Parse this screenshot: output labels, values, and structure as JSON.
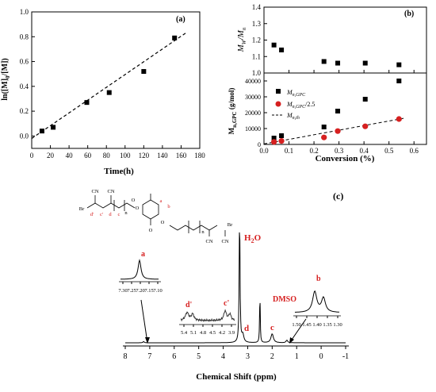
{
  "chart_data": [
    {
      "panel": "(a)",
      "type": "scatter",
      "xlabel": "Time(h)",
      "ylabel": "ln([M]0/[M])",
      "xlim": [
        0,
        180
      ],
      "ylim": [
        -0.1,
        1.0
      ],
      "xticks": [
        "0",
        "20",
        "40",
        "60",
        "80",
        "100",
        "120",
        "140",
        "160",
        "180"
      ],
      "yticks": [
        "0.0",
        "0.2",
        "0.4",
        "0.6",
        "0.8",
        "1.0"
      ],
      "points": [
        {
          "x": 11,
          "y": 0.04
        },
        {
          "x": 23,
          "y": 0.07
        },
        {
          "x": 59,
          "y": 0.27
        },
        {
          "x": 83,
          "y": 0.35
        },
        {
          "x": 120,
          "y": 0.52
        },
        {
          "x": 153,
          "y": 0.79
        }
      ],
      "fit_line": [
        {
          "x": 0,
          "y": -0.02
        },
        {
          "x": 165,
          "y": 0.83
        }
      ]
    },
    {
      "panel": "(b)",
      "type": "scatter",
      "xlabel": "Conversion (%)",
      "xlim": [
        0.0,
        0.65
      ],
      "xticks": [
        "0.0",
        "0.1",
        "0.2",
        "0.3",
        "0.4",
        "0.5",
        "0.6"
      ],
      "top": {
        "ylabel": "MW/Mn",
        "ylim": [
          1.0,
          1.4
        ],
        "yticks": [
          "1.0",
          "1.1",
          "1.2",
          "1.3",
          "1.4"
        ],
        "points": [
          {
            "x": 0.04,
            "y": 1.17
          },
          {
            "x": 0.07,
            "y": 1.14
          },
          {
            "x": 0.24,
            "y": 1.07
          },
          {
            "x": 0.295,
            "y": 1.06
          },
          {
            "x": 0.405,
            "y": 1.06
          },
          {
            "x": 0.54,
            "y": 1.05
          }
        ]
      },
      "bottom": {
        "ylabel": "Mn,GPC (g/mol)",
        "ylim": [
          0,
          45000
        ],
        "yticks": [
          "0",
          "10000",
          "20000",
          "30000",
          "40000"
        ],
        "series": [
          {
            "name": "Mn,GPC",
            "color": "#000000",
            "marker": "square",
            "points": [
              {
                "x": 0.04,
                "y": 4000
              },
              {
                "x": 0.07,
                "y": 5500
              },
              {
                "x": 0.24,
                "y": 11000
              },
              {
                "x": 0.295,
                "y": 21000
              },
              {
                "x": 0.405,
                "y": 28500
              },
              {
                "x": 0.54,
                "y": 40000
              }
            ]
          },
          {
            "name": "Mn,GPC/2.5",
            "color": "#d62020",
            "marker": "circle",
            "points": [
              {
                "x": 0.04,
                "y": 1600
              },
              {
                "x": 0.07,
                "y": 2200
              },
              {
                "x": 0.24,
                "y": 4400
              },
              {
                "x": 0.295,
                "y": 8400
              },
              {
                "x": 0.405,
                "y": 11400
              },
              {
                "x": 0.54,
                "y": 16000
              }
            ]
          },
          {
            "name": "Mn,th",
            "color": "#000000",
            "marker": "dashed-line",
            "points": [
              {
                "x": 0.0,
                "y": 300
              },
              {
                "x": 0.56,
                "y": 16500
              }
            ]
          }
        ]
      }
    },
    {
      "panel": "(c)",
      "type": "line",
      "xlabel": "Chemical Shift (ppm)",
      "xlim": [
        8,
        -1
      ],
      "xticks": [
        "8",
        "7",
        "6",
        "5",
        "4",
        "3",
        "2",
        "1",
        "0",
        "-1"
      ],
      "peaks": [
        {
          "label": "a",
          "ppm": 7.25,
          "height": 0.01
        },
        {
          "label": "d",
          "ppm": 3.2,
          "height": 0.06
        },
        {
          "label": "H2O",
          "ppm": 3.33,
          "height": 1.0
        },
        {
          "label": "DMSO",
          "ppm": 2.5,
          "height": 0.4
        },
        {
          "label": "c",
          "ppm": 2.0,
          "height": 0.07
        },
        {
          "label": "b",
          "ppm": 1.4,
          "height": 0.02
        }
      ],
      "insets": [
        {
          "label": "a",
          "ticks": [
            "7.30",
            "7.25",
            "7.20",
            "7.15",
            "7.10"
          ]
        },
        {
          "label": "b",
          "ticks": [
            "1.50",
            "1.45",
            "1.40",
            "1.35",
            "1.30"
          ]
        },
        {
          "label": "d' c'",
          "ticks": [
            "5.4",
            "5.1",
            "4.8",
            "4.5",
            "4.2",
            "3.9"
          ]
        }
      ],
      "structure_labels": [
        "CN",
        "CN",
        "Br",
        "d'",
        "c'",
        "d",
        "c",
        "n",
        "O",
        "O",
        "a",
        "b",
        "O",
        "O",
        "n",
        "CN",
        "CN",
        "Br"
      ]
    }
  ],
  "labels": {
    "panel_a": "(a)",
    "panel_b": "(b)",
    "panel_c": "(c)",
    "a_ylabel": "ln([M]",
    "a_ylabel_sub": "0",
    "a_ylabel_rest": "/[M])",
    "a_xlabel": "Time(h)",
    "b_ylabel_top_1": "M",
    "b_ylabel_top_sub1": "W",
    "b_ylabel_top_2": "/M",
    "b_ylabel_top_sub2": "n",
    "b_ylabel_bottom": "M",
    "b_ylabel_bottom_sub": "n,GPC",
    "b_ylabel_bottom_unit": " (g/mol)",
    "b_xlabel": "Conversion (%)",
    "legend_1": "M",
    "legend_1_sub": "n,GPC",
    "legend_2": "M",
    "legend_2_sub": "n,GPC",
    "legend_2_rest": "/2.5",
    "legend_3": "M",
    "legend_3_sub": "n,th",
    "c_xlabel": "Chemical Shift (ppm)",
    "peak_h2o": "H",
    "peak_h2o_sub": "2",
    "peak_h2o_rest": "O",
    "peak_dmso": "DMSO",
    "peak_d": "d",
    "peak_c": "c",
    "inset_a_label": "a",
    "inset_b_label": "b",
    "inset_d_label": "d'",
    "inset_c_label": "c'"
  }
}
